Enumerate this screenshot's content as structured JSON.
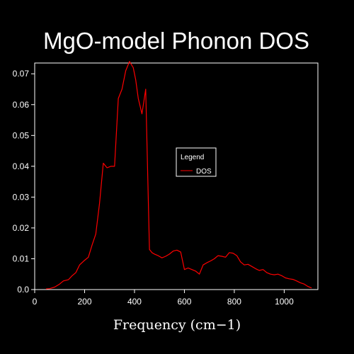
{
  "chart_data": {
    "type": "line",
    "title": "MgO-model Phonon DOS",
    "xlabel": "Frequency (cm−1)",
    "ylabel": "",
    "xlim": [
      0,
      1135
    ],
    "ylim": [
      0,
      0.0735
    ],
    "x_ticks": [
      "0",
      "200",
      "400",
      "600",
      "800",
      "1000"
    ],
    "y_ticks": [
      "0.0",
      "0.01",
      "0.02",
      "0.03",
      "0.04",
      "0.05",
      "0.06",
      "0.07"
    ],
    "legend": {
      "title": "Legend",
      "position": "right",
      "entries": [
        "DOS"
      ]
    },
    "grid": false,
    "colors": {
      "background": "#000000",
      "axes": "#ffffff",
      "series": "#ff0000"
    },
    "series": [
      {
        "name": "DOS",
        "x": [
          45,
          60,
          80,
          100,
          115,
          135,
          150,
          165,
          180,
          200,
          215,
          230,
          245,
          260,
          275,
          290,
          305,
          320,
          335,
          350,
          365,
          380,
          395,
          405,
          415,
          430,
          445,
          460,
          470,
          480,
          495,
          510,
          525,
          540,
          555,
          570,
          585,
          600,
          615,
          630,
          645,
          660,
          675,
          690,
          705,
          720,
          735,
          750,
          765,
          780,
          795,
          810,
          825,
          840,
          855,
          870,
          885,
          900,
          915,
          930,
          945,
          960,
          975,
          990,
          1005,
          1020,
          1035,
          1050,
          1065,
          1080,
          1095,
          1110
        ],
        "y": [
          0.0002,
          0.0003,
          0.0008,
          0.0018,
          0.0028,
          0.0032,
          0.0045,
          0.0055,
          0.008,
          0.0095,
          0.0105,
          0.0145,
          0.018,
          0.028,
          0.041,
          0.0395,
          0.04,
          0.04,
          0.062,
          0.065,
          0.071,
          0.074,
          0.072,
          0.068,
          0.062,
          0.057,
          0.065,
          0.013,
          0.012,
          0.0115,
          0.011,
          0.0103,
          0.0108,
          0.0115,
          0.0125,
          0.0128,
          0.0122,
          0.0065,
          0.007,
          0.0065,
          0.006,
          0.005,
          0.008,
          0.0087,
          0.0093,
          0.01,
          0.011,
          0.0108,
          0.0105,
          0.012,
          0.0118,
          0.011,
          0.009,
          0.008,
          0.0082,
          0.0075,
          0.0068,
          0.0062,
          0.0065,
          0.0055,
          0.005,
          0.0048,
          0.005,
          0.0045,
          0.0038,
          0.0035,
          0.0033,
          0.0028,
          0.0022,
          0.0018,
          0.001,
          0.0005
        ]
      }
    ]
  }
}
